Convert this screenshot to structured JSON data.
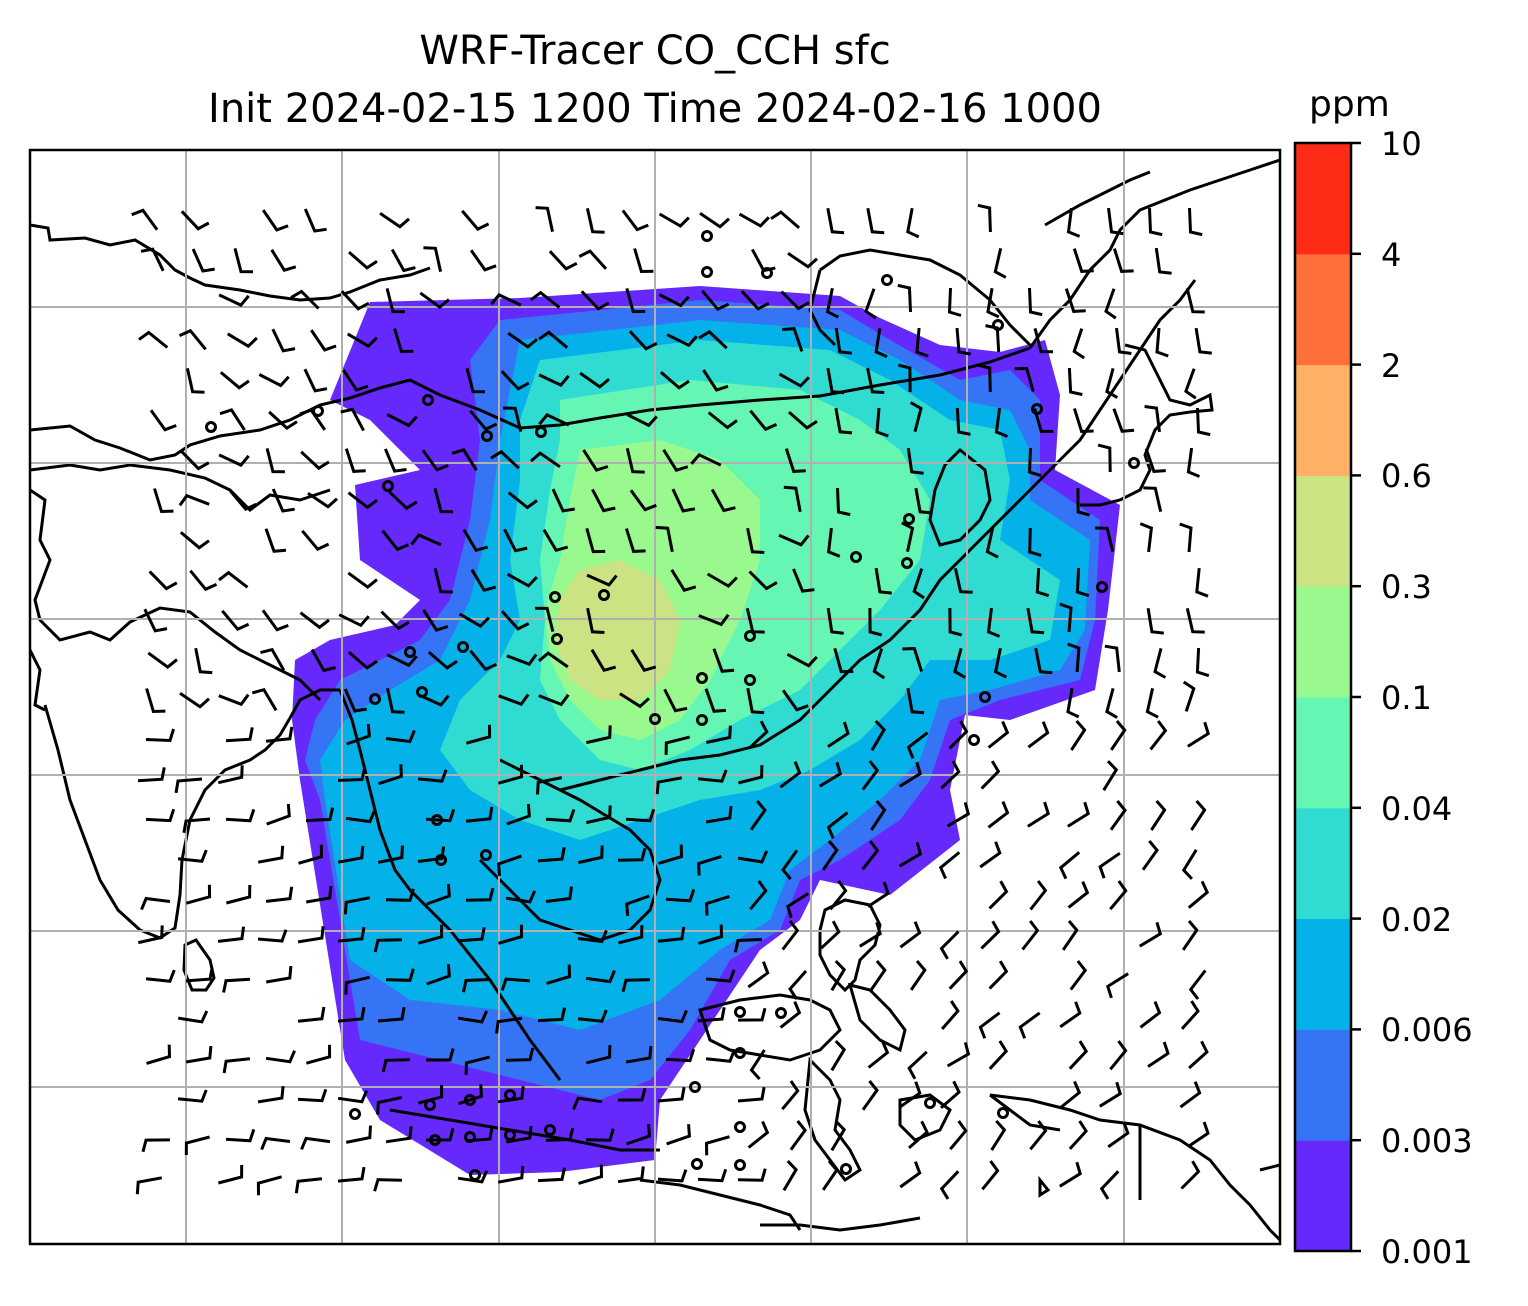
{
  "chart_data": {
    "type": "heatmap",
    "title": "WRF-Tracer CO_CCH sfc",
    "subtitle": "Init 2024-02-15 1200 Time 2024-02-16 1000",
    "colorbar": {
      "unit": "ppm",
      "levels": [
        "0.001",
        "0.003",
        "0.006",
        "0.02",
        "0.04",
        "0.1",
        "0.3",
        "0.6",
        "2",
        "4",
        "10"
      ],
      "colors": [
        "#6529fb",
        "#3574f4",
        "#04b1e9",
        "#30dcd1",
        "#66f6b4",
        "#9af98e",
        "#cce383",
        "#feb166",
        "#fe6f3a",
        "#fe2c16"
      ]
    },
    "grid": true,
    "overlays": [
      "coastlines",
      "country borders",
      "wind barbs"
    ]
  }
}
